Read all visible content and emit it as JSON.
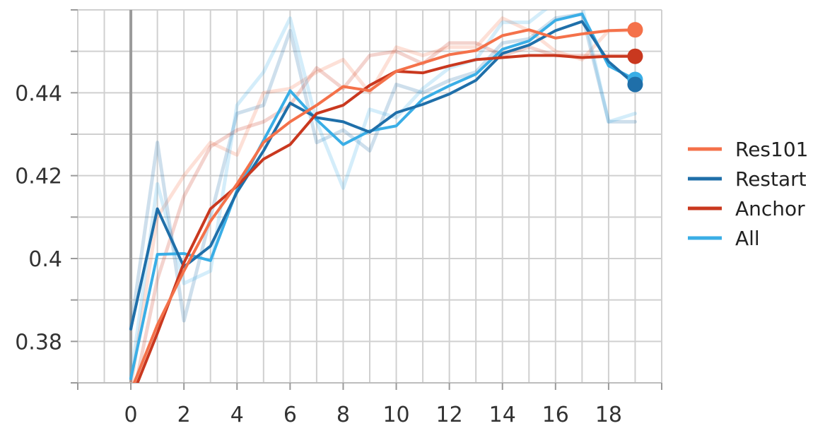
{
  "chart_data": {
    "type": "line",
    "title": "",
    "xlabel": "",
    "ylabel": "",
    "xlim": [
      -2,
      20
    ],
    "ylim": [
      0.37,
      0.46
    ],
    "xticks": [
      0,
      2,
      4,
      6,
      8,
      10,
      12,
      14,
      16,
      18
    ],
    "yticks": [
      0.38,
      0.4,
      0.42,
      0.44
    ],
    "ytick_labels": [
      "0.38",
      "0.4",
      "0.42",
      "0.44"
    ],
    "grid": true,
    "legend_position": "right",
    "x": [
      0,
      1,
      2,
      3,
      4,
      5,
      6,
      7,
      8,
      9,
      10,
      11,
      12,
      13,
      14,
      15,
      16,
      17,
      18,
      19
    ],
    "series": [
      {
        "name": "Res101",
        "color": "#f4714a",
        "values": [
          0.368,
          0.384,
          0.397,
          0.409,
          0.418,
          0.428,
          0.433,
          0.437,
          0.4415,
          0.4405,
          0.4452,
          0.4472,
          0.4492,
          0.4502,
          0.4538,
          0.4552,
          0.4532,
          0.4542,
          0.455,
          0.4552
        ],
        "raw": [
          0.369,
          0.41,
          0.42,
          0.428,
          0.425,
          0.44,
          0.441,
          0.445,
          0.448,
          0.44,
          0.451,
          0.449,
          0.451,
          0.451,
          0.458,
          0.455,
          0.45,
          0.448,
          0.455,
          0.455
        ]
      },
      {
        "name": "Restart",
        "color": "#1f6fa9",
        "values": [
          0.383,
          0.412,
          0.398,
          0.403,
          0.416,
          0.426,
          0.4375,
          0.434,
          0.433,
          0.4305,
          0.4352,
          0.4372,
          0.4397,
          0.443,
          0.4495,
          0.4515,
          0.455,
          0.4572,
          0.4475,
          0.442
        ],
        "raw": [
          0.383,
          0.428,
          0.385,
          0.41,
          0.435,
          0.437,
          0.455,
          0.428,
          0.431,
          0.426,
          0.442,
          0.44,
          0.443,
          0.445,
          0.452,
          0.453,
          0.458,
          0.459,
          0.433,
          0.433
        ]
      },
      {
        "name": "Anchor",
        "color": "#c9381f",
        "values": [
          0.366,
          0.382,
          0.399,
          0.412,
          0.4175,
          0.424,
          0.4275,
          0.435,
          0.437,
          0.4418,
          0.4452,
          0.4448,
          0.4465,
          0.448,
          0.4485,
          0.449,
          0.449,
          0.4485,
          0.4488,
          0.4488
        ],
        "raw": [
          0.364,
          0.395,
          0.415,
          0.427,
          0.431,
          0.433,
          0.437,
          0.446,
          0.441,
          0.449,
          0.45,
          0.447,
          0.452,
          0.452,
          0.449,
          0.451,
          0.449,
          0.449,
          0.449,
          0.449
        ]
      },
      {
        "name": "All",
        "color": "#3aaee6",
        "values": [
          0.371,
          0.401,
          0.4012,
          0.3995,
          0.4165,
          0.4285,
          0.4405,
          0.4335,
          0.4275,
          0.4308,
          0.432,
          0.4385,
          0.4417,
          0.4445,
          0.4505,
          0.4525,
          0.4575,
          0.459,
          0.4465,
          0.4432
        ],
        "raw": [
          0.371,
          0.418,
          0.394,
          0.397,
          0.437,
          0.445,
          0.458,
          0.433,
          0.417,
          0.436,
          0.434,
          0.441,
          0.446,
          0.448,
          0.457,
          0.457,
          0.462,
          0.461,
          0.433,
          0.435
        ]
      }
    ]
  }
}
